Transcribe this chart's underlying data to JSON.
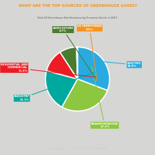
{
  "title": "WHAT ARE THE TOP SOURCES OF GREENHOUSE GASES?",
  "subtitle": "Total US Greenhouse Gas Emissions by Economic Sector in 2013",
  "slices": [
    {
      "label": "ELECTRIC",
      "value": 30.8,
      "color": "#29ABE2",
      "pct": "30.8%"
    },
    {
      "label": "TRANSPORTATION",
      "value": 27.3,
      "color": "#8DC63F",
      "pct": "27.3%"
    },
    {
      "label": "INDUSTRY",
      "value": 21.1,
      "color": "#00A99D",
      "pct": "21.1%"
    },
    {
      "label": "RESIDENTIAL AND\nCOMMERCIAL",
      "value": 11.6,
      "color": "#ED1C24",
      "pct": "11.6%"
    },
    {
      "label": "AGRICULTURE",
      "value": 8.7,
      "color": "#4A7C2F",
      "pct": "8.7%"
    },
    {
      "label": "US TERRITORIES",
      "value": 0.5,
      "color": "#F7941D",
      "pct": "0.5%"
    }
  ],
  "bg_color": "#D6D6D4",
  "footer_bg": "#2E2E2E",
  "title_color": "#F7941D",
  "subtitle_color": "#4A4A4A",
  "footer_color": "#CCCCCC",
  "start_angle": 90
}
